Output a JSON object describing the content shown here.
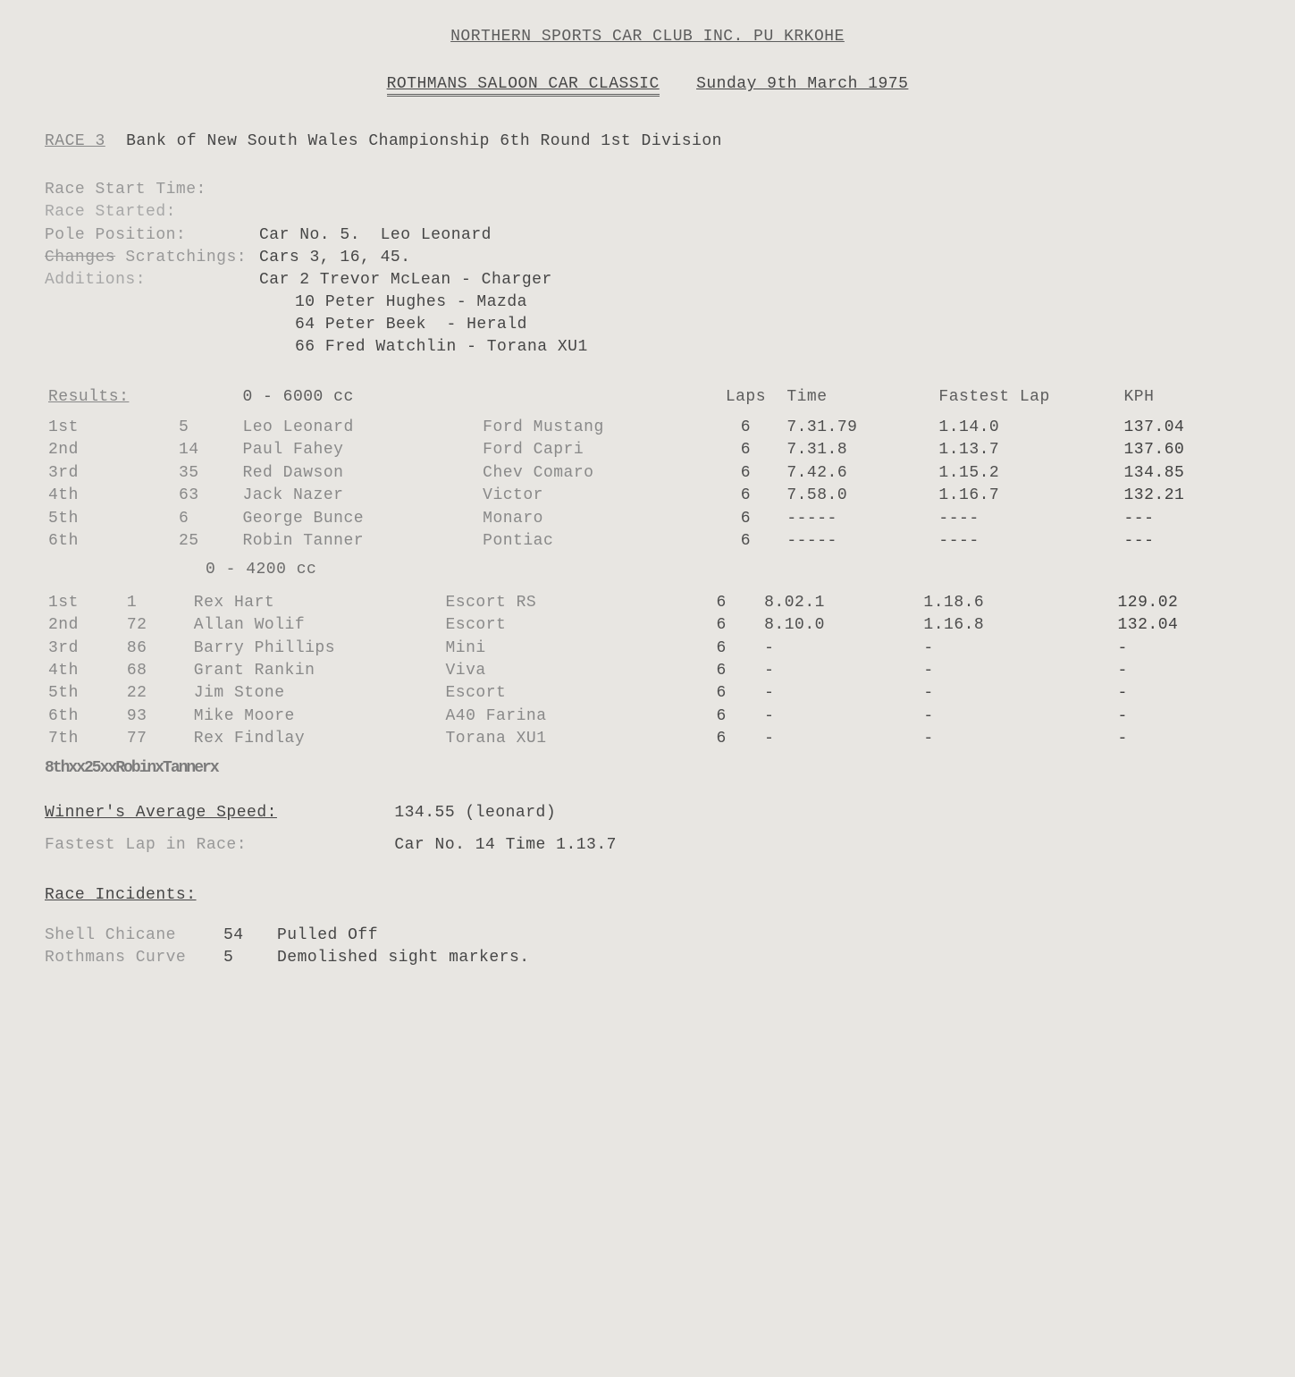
{
  "header": {
    "club": "NORTHERN SPORTS CAR CLUB INC.   PU KRKOHE",
    "event": "ROTHMANS SALOON CAR CLASSIC",
    "date": "Sunday 9th March 1975"
  },
  "race": {
    "label": "RACE 3",
    "title": "Bank of New South Wales Championship  6th Round 1st Division"
  },
  "info": {
    "start_time_lbl": "Race Start Time:",
    "started_lbl": "Race Started:",
    "pole_lbl": "Pole Position:",
    "pole_val": "Car No. 5.  Leo Leonard",
    "scratch_lbl_strike": "Changes",
    "scratch_lbl": " Scratchings:",
    "scratch_val": "Cars 3, 16, 45.",
    "add_lbl": "Additions:",
    "add_1": "Car 2 Trevor McLean - Charger",
    "add_2": "10 Peter Hughes - Mazda",
    "add_3": "64 Peter Beek  - Herald",
    "add_4": "66 Fred Watchlin - Torana XU1"
  },
  "results_label": "Results:",
  "class1_label": "0 - 6000 cc",
  "class2_label": "0 - 4200 cc",
  "cols": {
    "laps": "Laps",
    "time": "Time",
    "fl": "Fastest Lap",
    "kph": "KPH"
  },
  "class1": [
    {
      "pos": "1st",
      "num": "5",
      "driver": "Leo Leonard",
      "car": "Ford Mustang",
      "laps": "6",
      "time": "7.31.79",
      "fl": "1.14.0",
      "kph": "137.04"
    },
    {
      "pos": "2nd",
      "num": "14",
      "driver": "Paul Fahey",
      "car": "Ford Capri",
      "laps": "6",
      "time": "7.31.8",
      "fl": "1.13.7",
      "kph": "137.60"
    },
    {
      "pos": "3rd",
      "num": "35",
      "driver": "Red Dawson",
      "car": "Chev Comaro",
      "laps": "6",
      "time": "7.42.6",
      "fl": "1.15.2",
      "kph": "134.85"
    },
    {
      "pos": "4th",
      "num": "63",
      "driver": "Jack Nazer",
      "car": "Victor",
      "laps": "6",
      "time": "7.58.0",
      "fl": "1.16.7",
      "kph": "132.21"
    },
    {
      "pos": "5th",
      "num": "6",
      "driver": "George Bunce",
      "car": "Monaro",
      "laps": "6",
      "time": "-----",
      "fl": "----",
      "kph": "---"
    },
    {
      "pos": "6th",
      "num": "25",
      "driver": "Robin Tanner",
      "car": "Pontiac",
      "laps": "6",
      "time": "-----",
      "fl": "----",
      "kph": "---"
    }
  ],
  "class2": [
    {
      "pos": "1st",
      "num": "1",
      "driver": "Rex Hart",
      "car": "Escort RS",
      "laps": "6",
      "time": "8.02.1",
      "fl": "1.18.6",
      "kph": "129.02"
    },
    {
      "pos": "2nd",
      "num": "72",
      "driver": "Allan Wolif",
      "car": "Escort",
      "laps": "6",
      "time": "8.10.0",
      "fl": "1.16.8",
      "kph": "132.04"
    },
    {
      "pos": "3rd",
      "num": "86",
      "driver": "Barry Phillips",
      "car": "Mini",
      "laps": "6",
      "time": "-",
      "fl": "-",
      "kph": "-"
    },
    {
      "pos": "4th",
      "num": "68",
      "driver": "Grant Rankin",
      "car": "Viva",
      "laps": "6",
      "time": "-",
      "fl": "-",
      "kph": "-"
    },
    {
      "pos": "5th",
      "num": "22",
      "driver": "Jim Stone",
      "car": "Escort",
      "laps": "6",
      "time": "-",
      "fl": "-",
      "kph": "-"
    },
    {
      "pos": "6th",
      "num": "93",
      "driver": "Mike Moore",
      "car": "A40 Farina",
      "laps": "6",
      "time": "-",
      "fl": "-",
      "kph": "-"
    },
    {
      "pos": "7th",
      "num": "77",
      "driver": "Rex Findlay",
      "car": "Torana XU1",
      "laps": "6",
      "time": "-",
      "fl": "-",
      "kph": "-"
    }
  ],
  "crossed_row": "8thxx25xxRobinxTannerx",
  "summary": {
    "avg_label": "Winner's Average Speed:",
    "avg_val": "134.55 (leonard)",
    "fl_label": "Fastest Lap in Race:",
    "fl_val": "Car No. 14   Time 1.13.7"
  },
  "incidents": {
    "label": "Race Incidents:",
    "rows": [
      {
        "loc": "Shell Chicane",
        "num": "54",
        "note": "Pulled Off"
      },
      {
        "loc": "Rothmans Curve",
        "num": "5",
        "note": "Demolished sight markers."
      }
    ]
  }
}
